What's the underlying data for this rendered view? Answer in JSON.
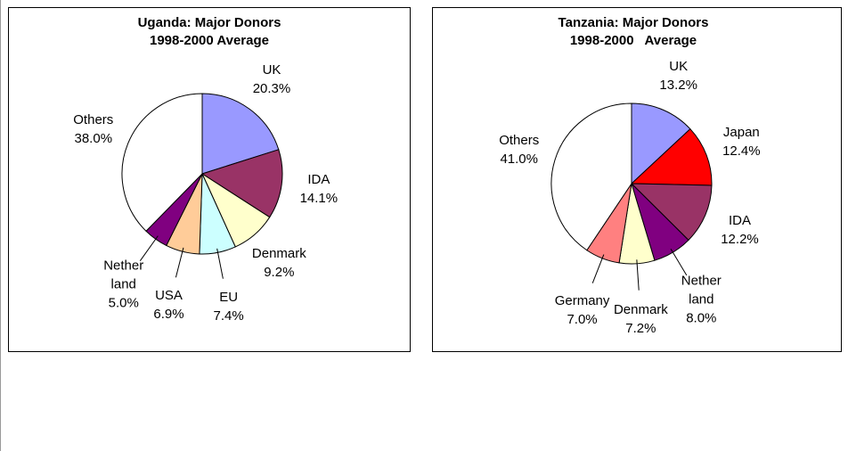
{
  "chart_data": [
    {
      "type": "pie",
      "title": "Uganda: Major Donors\n1998-2000 Average",
      "categories": [
        "UK",
        "IDA",
        "Denmark",
        "EU",
        "USA",
        "Nether\nland",
        "Others"
      ],
      "values": [
        20.3,
        14.1,
        9.2,
        7.4,
        6.9,
        5.0,
        38.0
      ],
      "value_labels": [
        "20.3%",
        "14.1%",
        "9.2%",
        "7.4%",
        "6.9%",
        "5.0%",
        "38.0%"
      ],
      "colors": [
        "#9999ff",
        "#993366",
        "#ffffcc",
        "#ccffff",
        "#ffcc99",
        "#800080",
        "#ffffff"
      ]
    },
    {
      "type": "pie",
      "title": "Tanzania: Major Donors\n1998-2000   Average",
      "categories": [
        "UK",
        "Japan",
        "IDA",
        "Nether\nland",
        "Denmark",
        "Germany",
        "Others"
      ],
      "values": [
        13.2,
        12.4,
        12.2,
        8.0,
        7.2,
        7.0,
        41.0
      ],
      "value_labels": [
        "13.2%",
        "12.4%",
        "12.2%",
        "8.0%",
        "7.2%",
        "7.0%",
        "41.0%"
      ],
      "colors": [
        "#9999ff",
        "#ff0000",
        "#993366",
        "#800080",
        "#ffffcc",
        "#ff8080",
        "#ffffff"
      ]
    }
  ]
}
